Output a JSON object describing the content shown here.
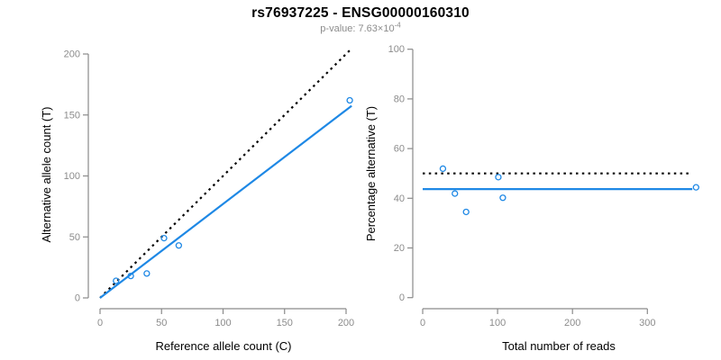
{
  "header": {
    "title": "rs76937225 - ENSG00000160310",
    "subtitle_main": "p-value: 7.63×10",
    "subtitle_exponent": "-4"
  },
  "colors": {
    "accent_blue": "#1E88E5",
    "axis_gray": "#8a8a8a",
    "tick_label_gray": "#8c8c8c",
    "axis_title_black": "#000000",
    "dotted_line_black": "#000000",
    "background": "#ffffff"
  },
  "chart_data": [
    {
      "type": "scatter",
      "name": "allele-count-plot",
      "title": "",
      "xlabel": "Reference allele count (C)",
      "ylabel": "Alternative allele count (T)",
      "xticks": [
        0,
        50,
        100,
        150,
        200
      ],
      "yticks": [
        0,
        50,
        100,
        150,
        200
      ],
      "xlim": [
        0,
        205
      ],
      "ylim": [
        0,
        203
      ],
      "grid": false,
      "legend": "none",
      "marker": "open-circle",
      "points": [
        [
          13,
          14
        ],
        [
          25,
          18
        ],
        [
          38,
          20
        ],
        [
          52,
          49
        ],
        [
          64,
          43
        ],
        [
          203,
          162
        ]
      ],
      "lines": [
        {
          "name": "identity-line",
          "style": "dotted",
          "color": "#000000",
          "from": [
            0,
            0
          ],
          "to": [
            203,
            203
          ]
        },
        {
          "name": "fit-line",
          "style": "solid",
          "color": "#1E88E5",
          "from": [
            0,
            0
          ],
          "to": [
            204.5,
            157.5
          ]
        }
      ]
    },
    {
      "type": "scatter",
      "name": "percentage-reads-plot",
      "title": "",
      "xlabel": "Total number of reads",
      "ylabel": "Percentage alternative (T)",
      "xticks": [
        0,
        100,
        200,
        300
      ],
      "yticks": [
        0,
        20,
        40,
        60,
        80,
        100
      ],
      "xlim": [
        0,
        365
      ],
      "ylim": [
        0,
        100
      ],
      "grid": false,
      "legend": "none",
      "marker": "open-circle",
      "points": [
        [
          27,
          51.9
        ],
        [
          43,
          41.9
        ],
        [
          58,
          34.5
        ],
        [
          101,
          48.5
        ],
        [
          107,
          40.2
        ],
        [
          365,
          44.4
        ]
      ],
      "lines": [
        {
          "name": "fifty-percent-line",
          "style": "dotted",
          "color": "#000000",
          "from": [
            0,
            50
          ],
          "to": [
            360,
            50
          ]
        },
        {
          "name": "mean-percentage-line",
          "style": "solid",
          "color": "#1E88E5",
          "from": [
            0,
            43.7
          ],
          "to": [
            360,
            43.7
          ]
        }
      ]
    }
  ]
}
